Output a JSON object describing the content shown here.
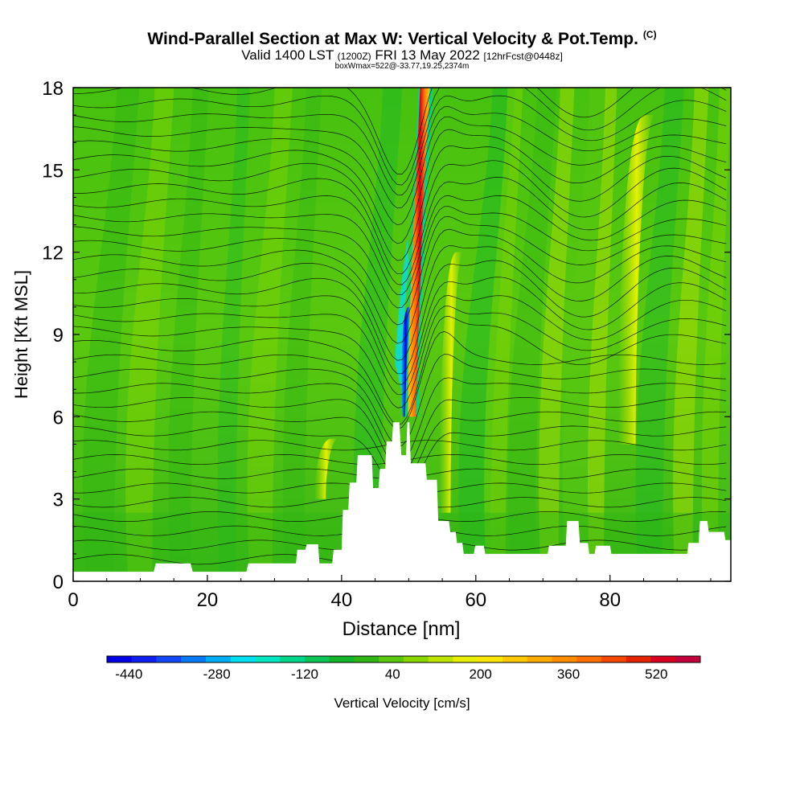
{
  "titles": {
    "main": "Wind-Parallel Section at Max W: Vertical Velocity & Pot.Temp.",
    "copyright": "(C)",
    "valid_prefix": "Valid 1400 LST",
    "valid_utc": "(1200Z)",
    "valid_date": "FRI 13 May 2022",
    "forecast": "[12hrFcst@0448z]",
    "box_info": "boxWmax=522@-33.77,19.25,2374m"
  },
  "colorbar": {
    "label": "Vertical Velocity [cm/s]",
    "tick_labels": [
      "-440",
      "-280",
      "-120",
      "40",
      "200",
      "360",
      "520"
    ],
    "colors": [
      "#0000e6",
      "#0e1ff0",
      "#1247f5",
      "#0a79f5",
      "#00aef5",
      "#00dff0",
      "#00e6c3",
      "#00d68a",
      "#0bc656",
      "#13b52a",
      "#2fb514",
      "#5ac80f",
      "#8ad600",
      "#bde300",
      "#e6f000",
      "#ffe600",
      "#ffc800",
      "#ffaa00",
      "#ff8c00",
      "#ff6e00",
      "#f54600",
      "#e62300",
      "#d7001e",
      "#c3003c"
    ]
  },
  "chart_data": {
    "type": "heatmap",
    "title": "Wind-Parallel Section at Max W: Vertical Velocity & Pot.Temp.",
    "xlabel": "Distance [nm]",
    "ylabel": "Height [Kft MSL]",
    "xlim": [
      0,
      98
    ],
    "ylim": [
      0,
      18
    ],
    "x_ticks": [
      0,
      20,
      40,
      60,
      80
    ],
    "y_ticks": [
      0,
      3,
      6,
      9,
      12,
      15,
      18
    ],
    "colorbar_range_cm_s": [
      -480,
      600
    ],
    "max_w_cm_s": 522,
    "terrain_profile_kft": [
      [
        0,
        0.35
      ],
      [
        12,
        0.35
      ],
      [
        12.3,
        0.65
      ],
      [
        17.5,
        0.65
      ],
      [
        17.8,
        0.35
      ],
      [
        25.8,
        0.35
      ],
      [
        26.1,
        0.65
      ],
      [
        33.2,
        0.65
      ],
      [
        33.4,
        1.15
      ],
      [
        34.6,
        1.15
      ],
      [
        34.8,
        1.35
      ],
      [
        36.5,
        1.35
      ],
      [
        36.7,
        0.65
      ],
      [
        38.6,
        0.65
      ],
      [
        38.8,
        1.15
      ],
      [
        40,
        1.15
      ],
      [
        40.2,
        2.6
      ],
      [
        41,
        2.6
      ],
      [
        41.2,
        3.6
      ],
      [
        42.2,
        3.6
      ],
      [
        42.4,
        4.6
      ],
      [
        44.5,
        4.6
      ],
      [
        44.7,
        3.4
      ],
      [
        45.5,
        3.4
      ],
      [
        45.7,
        4.1
      ],
      [
        46.5,
        4.1
      ],
      [
        46.7,
        5.1
      ],
      [
        47.5,
        5.1
      ],
      [
        47.7,
        5.8
      ],
      [
        48.6,
        5.8
      ],
      [
        48.9,
        4.6
      ],
      [
        49.6,
        4.6
      ],
      [
        49.8,
        5.8
      ],
      [
        50.1,
        5.8
      ],
      [
        50.3,
        4.3
      ],
      [
        52.5,
        4.3
      ],
      [
        52.7,
        3.7
      ],
      [
        54.2,
        3.7
      ],
      [
        54.4,
        2.2
      ],
      [
        56,
        2.2
      ],
      [
        56.2,
        1.8
      ],
      [
        57,
        1.8
      ],
      [
        57.2,
        1.4
      ],
      [
        58,
        1.4
      ],
      [
        58.2,
        1
      ],
      [
        59.7,
        1
      ],
      [
        59.9,
        1.3
      ],
      [
        61.2,
        1.3
      ],
      [
        61.4,
        1
      ],
      [
        70.7,
        1
      ],
      [
        70.9,
        1.3
      ],
      [
        73.4,
        1.3
      ],
      [
        73.6,
        2.2
      ],
      [
        75.3,
        2.2
      ],
      [
        75.5,
        1.4
      ],
      [
        76.7,
        1.4
      ],
      [
        76.9,
        1
      ],
      [
        77.7,
        1
      ],
      [
        77.9,
        1.3
      ],
      [
        80,
        1.3
      ],
      [
        80.2,
        1
      ],
      [
        91.5,
        1
      ],
      [
        91.7,
        1.4
      ],
      [
        93.2,
        1.4
      ],
      [
        93.4,
        2.2
      ],
      [
        94.5,
        2.2
      ],
      [
        94.7,
        1.8
      ],
      [
        97,
        1.8
      ],
      [
        97.2,
        1.5
      ],
      [
        98,
        1.5
      ]
    ],
    "velocity_features": [
      {
        "x": 50.5,
        "y_range": [
          6,
          18
        ],
        "value_cm_s": 522
      },
      {
        "x": 49.1,
        "y_range": [
          6,
          10
        ],
        "value_cm_s": -440
      },
      {
        "x": 36.8,
        "y_range": [
          3,
          5.2
        ],
        "value_cm_s": 200
      },
      {
        "x": 55.4,
        "y_range": [
          2.5,
          12
        ],
        "value_cm_s": 240
      },
      {
        "x": 82.5,
        "y_range": [
          5,
          17
        ],
        "value_cm_s": 150
      }
    ]
  }
}
